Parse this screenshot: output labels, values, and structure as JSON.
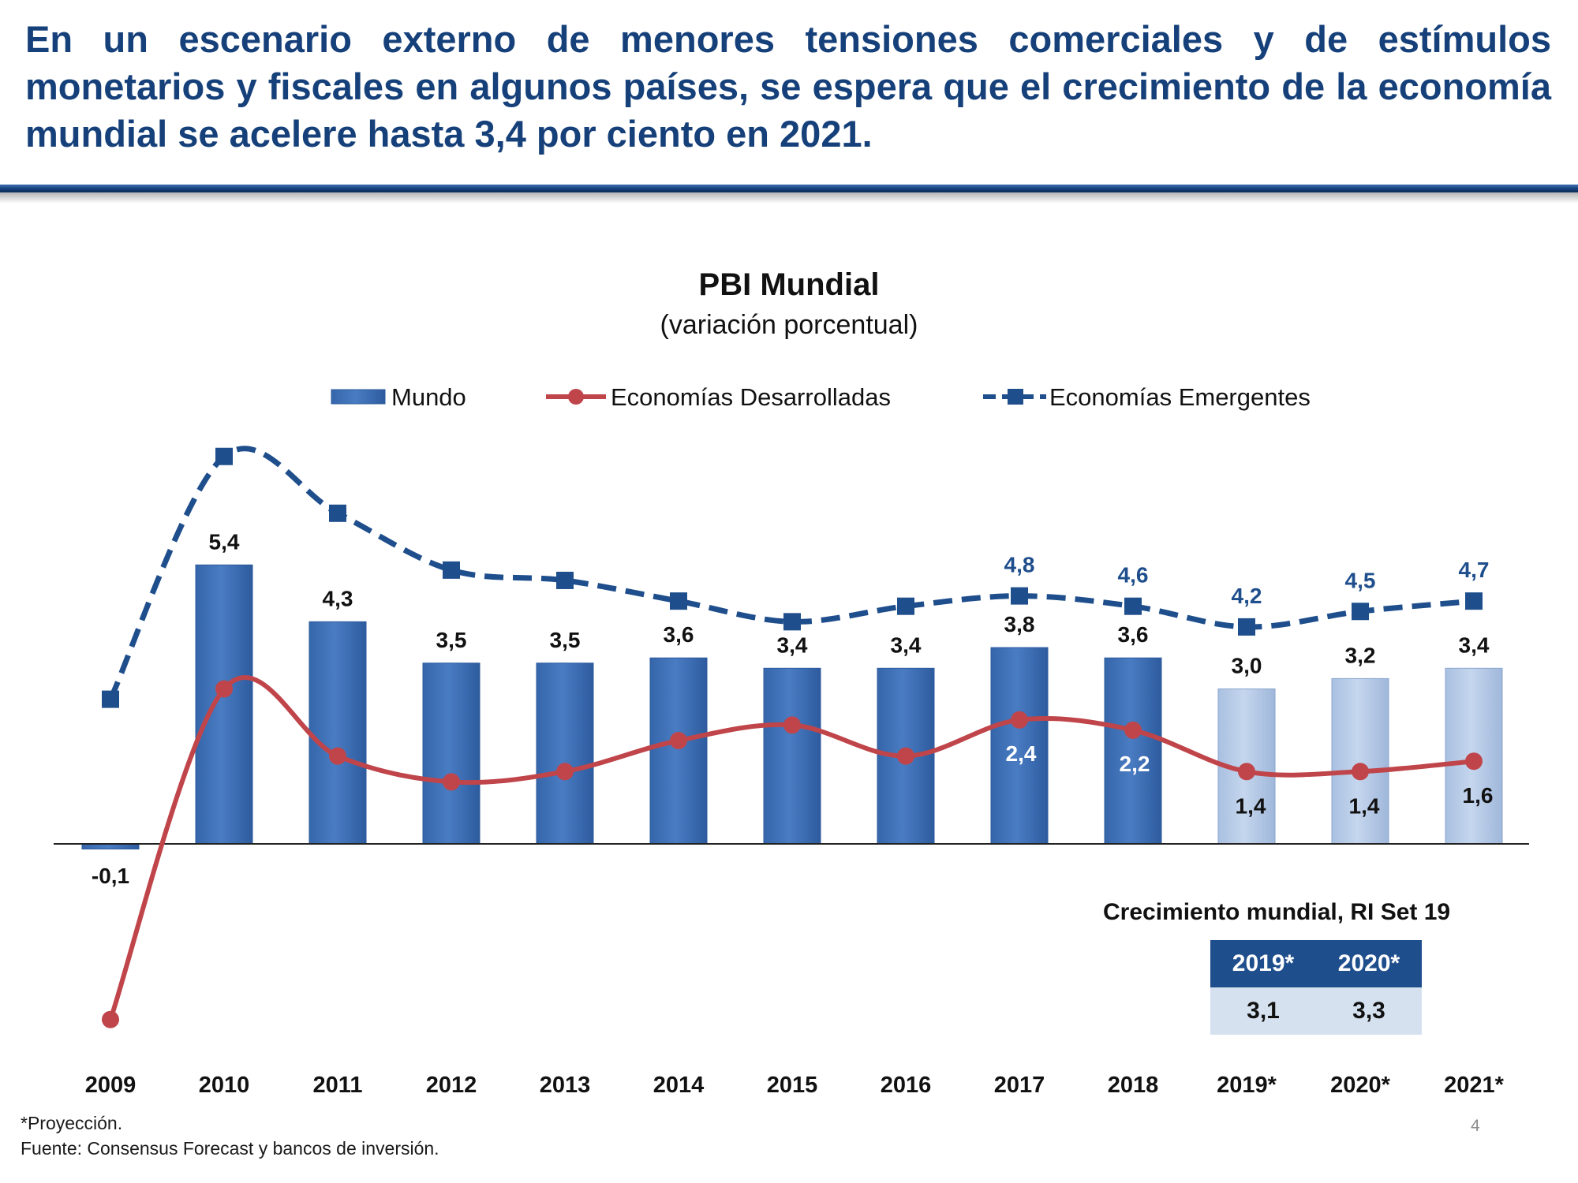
{
  "headline": "En un escenario externo de menores tensiones comerciales y de estímulos monetarios y fiscales en algunos países, se espera que el crecimiento de la economía mundial se acelere hasta 3,4 por ciento en 2021.",
  "colors": {
    "headline": "#16407a",
    "bar_actual": "#4a7cc3",
    "bar_projection": "#c5d6ee",
    "developed_line": "#c0454a",
    "emerging_line": "#1f4e8c",
    "table_header": "#1f4e8c",
    "table_body": "#d6e1f0"
  },
  "chart_data": {
    "type": "bar",
    "title": "PBI Mundial",
    "subtitle": "(variación porcentual)",
    "categories": [
      "2009",
      "2010",
      "2011",
      "2012",
      "2013",
      "2014",
      "2015",
      "2016",
      "2017",
      "2018",
      "2019*",
      "2020*",
      "2021*"
    ],
    "series": [
      {
        "name": "Mundo",
        "kind": "bar",
        "values": [
          -0.1,
          5.4,
          4.3,
          3.5,
          3.5,
          3.6,
          3.4,
          3.4,
          3.8,
          3.6,
          3.0,
          3.2,
          3.4
        ],
        "labels": [
          "-0,1",
          "5,4",
          "4,3",
          "3,5",
          "3,5",
          "3,6",
          "3,4",
          "3,4",
          "3,8",
          "3,6",
          "3,0",
          "3,2",
          "3,4"
        ],
        "projected": [
          false,
          false,
          false,
          false,
          false,
          false,
          false,
          false,
          false,
          false,
          true,
          true,
          true
        ]
      },
      {
        "name": "Economías Desarrolladas",
        "kind": "line",
        "values": [
          -3.4,
          3.0,
          1.7,
          1.2,
          1.4,
          2.0,
          2.3,
          1.7,
          2.4,
          2.2,
          1.4,
          1.4,
          1.6
        ],
        "labels": [
          null,
          null,
          null,
          null,
          null,
          null,
          null,
          null,
          "2,4",
          "2,2",
          "1,4",
          "1,4",
          "1,6"
        ]
      },
      {
        "name": "Economías Emergentes",
        "kind": "line",
        "values": [
          2.8,
          7.5,
          6.4,
          5.3,
          5.1,
          4.7,
          4.3,
          4.6,
          4.8,
          4.6,
          4.2,
          4.5,
          4.7
        ],
        "labels": [
          null,
          null,
          null,
          null,
          null,
          null,
          null,
          null,
          "4,8",
          "4,6",
          "4,2",
          "4,5",
          "4,7"
        ]
      }
    ],
    "legend_position": "top",
    "grid": false,
    "ylim": [
      -4,
      8.5
    ]
  },
  "ri_table": {
    "title": "Crecimiento mundial, RI Set 19",
    "headers": [
      "2019*",
      "2020*"
    ],
    "values": [
      "3,1",
      "3,3"
    ]
  },
  "footnote": {
    "projection": "*Proyección.",
    "source": "Fuente: Consensus Forecast y bancos de inversión."
  },
  "page_number": "4"
}
